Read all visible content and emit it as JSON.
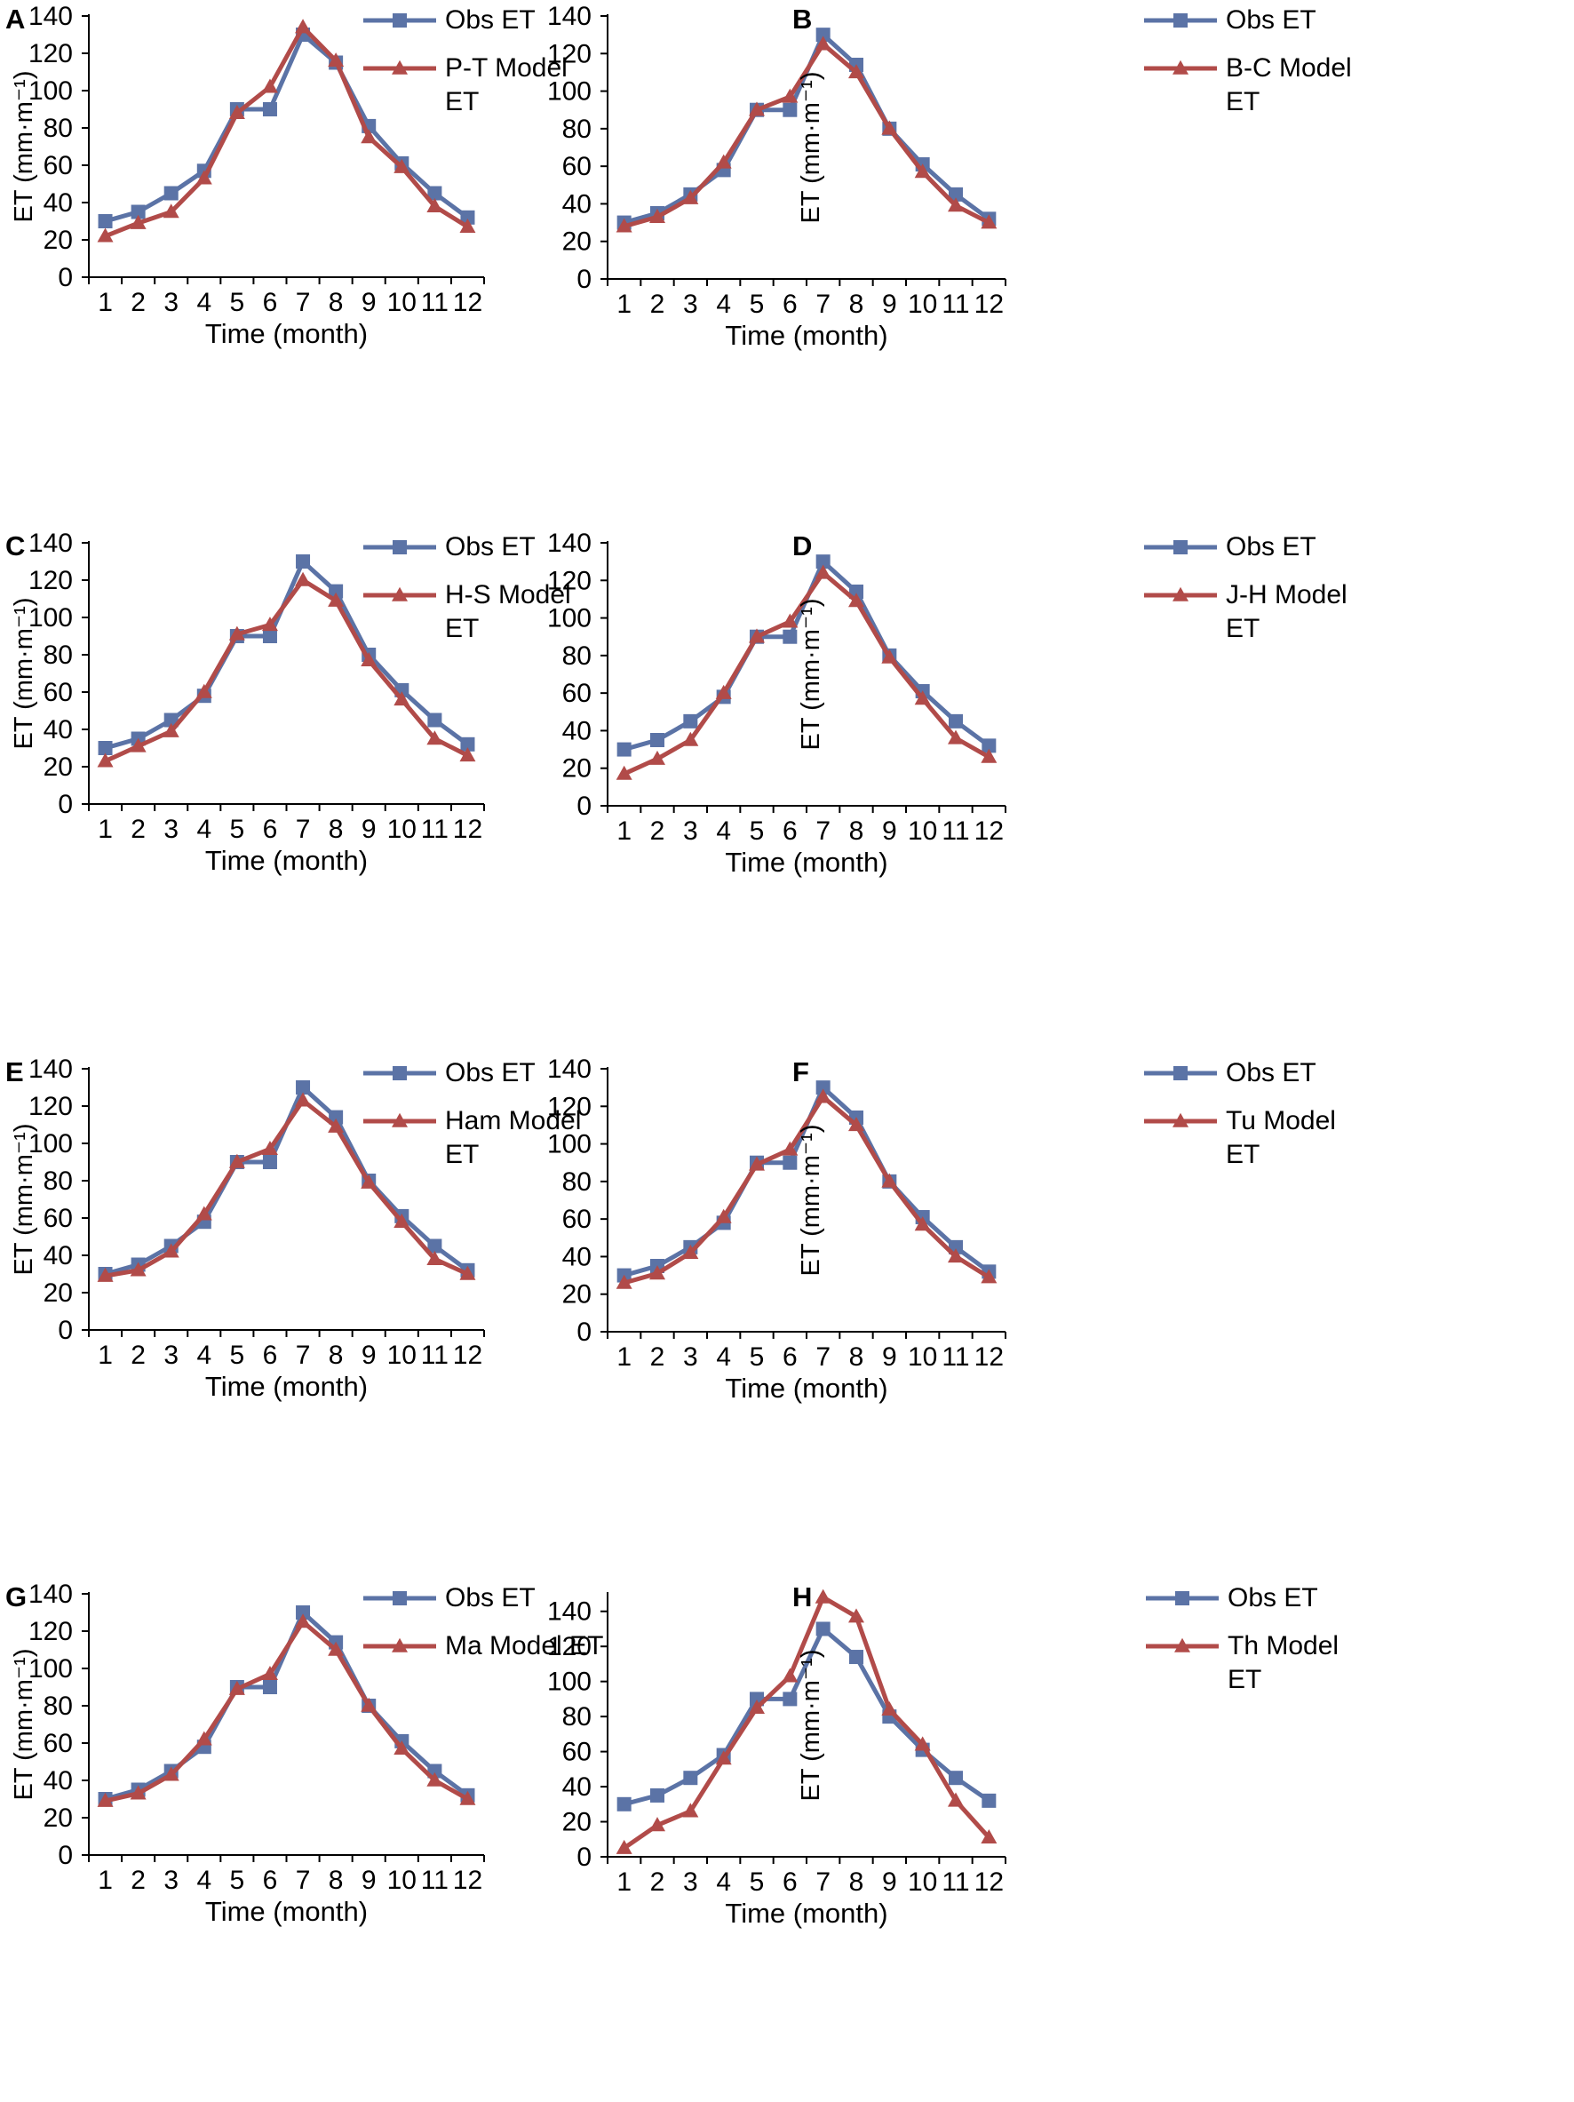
{
  "colors": {
    "obs": "#5B73A6",
    "model": "#B14B49",
    "axis": "#000000"
  },
  "chart_data": [
    {
      "panel": "A",
      "type": "line",
      "xlabel": "Time (month)",
      "ylabel": "ET (mm·m⁻¹)",
      "ylim": [
        0,
        140
      ],
      "yticks": [
        0,
        20,
        40,
        60,
        80,
        100,
        120,
        140
      ],
      "categories": [
        "1",
        "2",
        "3",
        "4",
        "5",
        "6",
        "7",
        "8",
        "9",
        "10",
        "11",
        "12"
      ],
      "series": [
        {
          "name": "Obs ET",
          "marker": "square",
          "values": [
            30,
            35,
            45,
            57,
            90,
            90,
            130,
            115,
            81,
            61,
            45,
            32
          ]
        },
        {
          "name": "P-T Model ET",
          "marker": "triangle",
          "values": [
            22,
            29,
            35,
            53,
            88,
            102,
            134,
            116,
            75,
            59,
            38,
            27
          ]
        }
      ],
      "legend_position": "top-right"
    },
    {
      "panel": "B",
      "type": "line",
      "xlabel": "Time (month)",
      "ylabel": "ET (mm·m⁻¹)",
      "ylim": [
        0,
        140
      ],
      "yticks": [
        0,
        20,
        40,
        60,
        80,
        100,
        120,
        140
      ],
      "categories": [
        "1",
        "2",
        "3",
        "4",
        "5",
        "6",
        "7",
        "8",
        "9",
        "10",
        "11",
        "12"
      ],
      "series": [
        {
          "name": "Obs ET",
          "marker": "square",
          "values": [
            30,
            35,
            45,
            58,
            90,
            90,
            130,
            114,
            80,
            61,
            45,
            32
          ]
        },
        {
          "name": "B-C Model ET",
          "marker": "triangle",
          "values": [
            28,
            33,
            43,
            62,
            90,
            97,
            125,
            110,
            80,
            57,
            39,
            30
          ]
        }
      ],
      "legend_position": "top-right"
    },
    {
      "panel": "C",
      "type": "line",
      "xlabel": "Time (month)",
      "ylabel": "ET (mm·m⁻¹)",
      "ylim": [
        0,
        140
      ],
      "yticks": [
        0,
        20,
        40,
        60,
        80,
        100,
        120,
        140
      ],
      "categories": [
        "1",
        "2",
        "3",
        "4",
        "5",
        "6",
        "7",
        "8",
        "9",
        "10",
        "11",
        "12"
      ],
      "series": [
        {
          "name": "Obs ET",
          "marker": "square",
          "values": [
            30,
            35,
            45,
            58,
            90,
            90,
            130,
            114,
            80,
            61,
            45,
            32
          ]
        },
        {
          "name": "H-S Model ET",
          "marker": "triangle",
          "values": [
            23,
            31,
            39,
            60,
            91,
            96,
            120,
            109,
            77,
            56,
            35,
            26
          ]
        }
      ],
      "legend_position": "top-right"
    },
    {
      "panel": "D",
      "type": "line",
      "xlabel": "Time (month)",
      "ylabel": "ET (mm·m⁻¹)",
      "ylim": [
        0,
        140
      ],
      "yticks": [
        0,
        20,
        40,
        60,
        80,
        100,
        120,
        140
      ],
      "categories": [
        "1",
        "2",
        "3",
        "4",
        "5",
        "6",
        "7",
        "8",
        "9",
        "10",
        "11",
        "12"
      ],
      "series": [
        {
          "name": "Obs ET",
          "marker": "square",
          "values": [
            30,
            35,
            45,
            58,
            90,
            90,
            130,
            114,
            80,
            61,
            45,
            32
          ]
        },
        {
          "name": "J-H Model ET",
          "marker": "triangle",
          "values": [
            17,
            25,
            35,
            60,
            90,
            98,
            124,
            109,
            79,
            57,
            36,
            26
          ]
        }
      ],
      "legend_position": "top-right"
    },
    {
      "panel": "E",
      "type": "line",
      "xlabel": "Time (month)",
      "ylabel": "ET (mm·m⁻¹)",
      "ylim": [
        0,
        140
      ],
      "yticks": [
        0,
        20,
        40,
        60,
        80,
        100,
        120,
        140
      ],
      "categories": [
        "1",
        "2",
        "3",
        "4",
        "5",
        "6",
        "7",
        "8",
        "9",
        "10",
        "11",
        "12"
      ],
      "series": [
        {
          "name": "Obs ET",
          "marker": "square",
          "values": [
            30,
            35,
            45,
            58,
            90,
            90,
            130,
            114,
            80,
            61,
            45,
            32
          ]
        },
        {
          "name": "Ham Model ET",
          "marker": "triangle",
          "values": [
            29,
            32,
            42,
            62,
            90,
            97,
            123,
            109,
            79,
            58,
            38,
            30
          ]
        }
      ],
      "legend_position": "top-right"
    },
    {
      "panel": "F",
      "type": "line",
      "xlabel": "Time (month)",
      "ylabel": "ET (mm·m⁻¹)",
      "ylim": [
        0,
        140
      ],
      "yticks": [
        0,
        20,
        40,
        60,
        80,
        100,
        120,
        140
      ],
      "categories": [
        "1",
        "2",
        "3",
        "4",
        "5",
        "6",
        "7",
        "8",
        "9",
        "10",
        "11",
        "12"
      ],
      "series": [
        {
          "name": "Obs ET",
          "marker": "square",
          "values": [
            30,
            35,
            45,
            58,
            90,
            90,
            130,
            114,
            80,
            61,
            45,
            32
          ]
        },
        {
          "name": "Tu Model ET",
          "marker": "triangle",
          "values": [
            26,
            31,
            42,
            61,
            89,
            97,
            125,
            110,
            80,
            57,
            40,
            29
          ]
        }
      ],
      "legend_position": "top-right"
    },
    {
      "panel": "G",
      "type": "line",
      "xlabel": "Time (month)",
      "ylabel": "ET (mm·m⁻¹)",
      "ylim": [
        0,
        140
      ],
      "yticks": [
        0,
        20,
        40,
        60,
        80,
        100,
        120,
        140
      ],
      "categories": [
        "1",
        "2",
        "3",
        "4",
        "5",
        "6",
        "7",
        "8",
        "9",
        "10",
        "11",
        "12"
      ],
      "series": [
        {
          "name": "Obs ET",
          "marker": "square",
          "values": [
            30,
            35,
            45,
            58,
            90,
            90,
            130,
            114,
            80,
            61,
            45,
            32
          ]
        },
        {
          "name": "Ma Model ET",
          "marker": "triangle",
          "values": [
            29,
            33,
            43,
            62,
            89,
            97,
            125,
            110,
            80,
            57,
            40,
            30
          ]
        }
      ],
      "legend_position": "top-right"
    },
    {
      "panel": "H",
      "type": "line",
      "xlabel": "Time (month)",
      "ylabel": "ET (mm·m⁻¹)",
      "ylim": [
        0,
        150
      ],
      "yticks": [
        0,
        20,
        40,
        60,
        80,
        100,
        120,
        140
      ],
      "categories": [
        "1",
        "2",
        "3",
        "4",
        "5",
        "6",
        "7",
        "8",
        "9",
        "10",
        "11",
        "12"
      ],
      "series": [
        {
          "name": "Obs ET",
          "marker": "square",
          "values": [
            30,
            35,
            45,
            58,
            90,
            90,
            130,
            114,
            80,
            61,
            45,
            32
          ]
        },
        {
          "name": "Th Model ET",
          "marker": "triangle",
          "values": [
            5,
            18,
            26,
            56,
            85,
            103,
            148,
            137,
            84,
            64,
            32,
            11
          ]
        }
      ],
      "legend_position": "top-right"
    }
  ]
}
